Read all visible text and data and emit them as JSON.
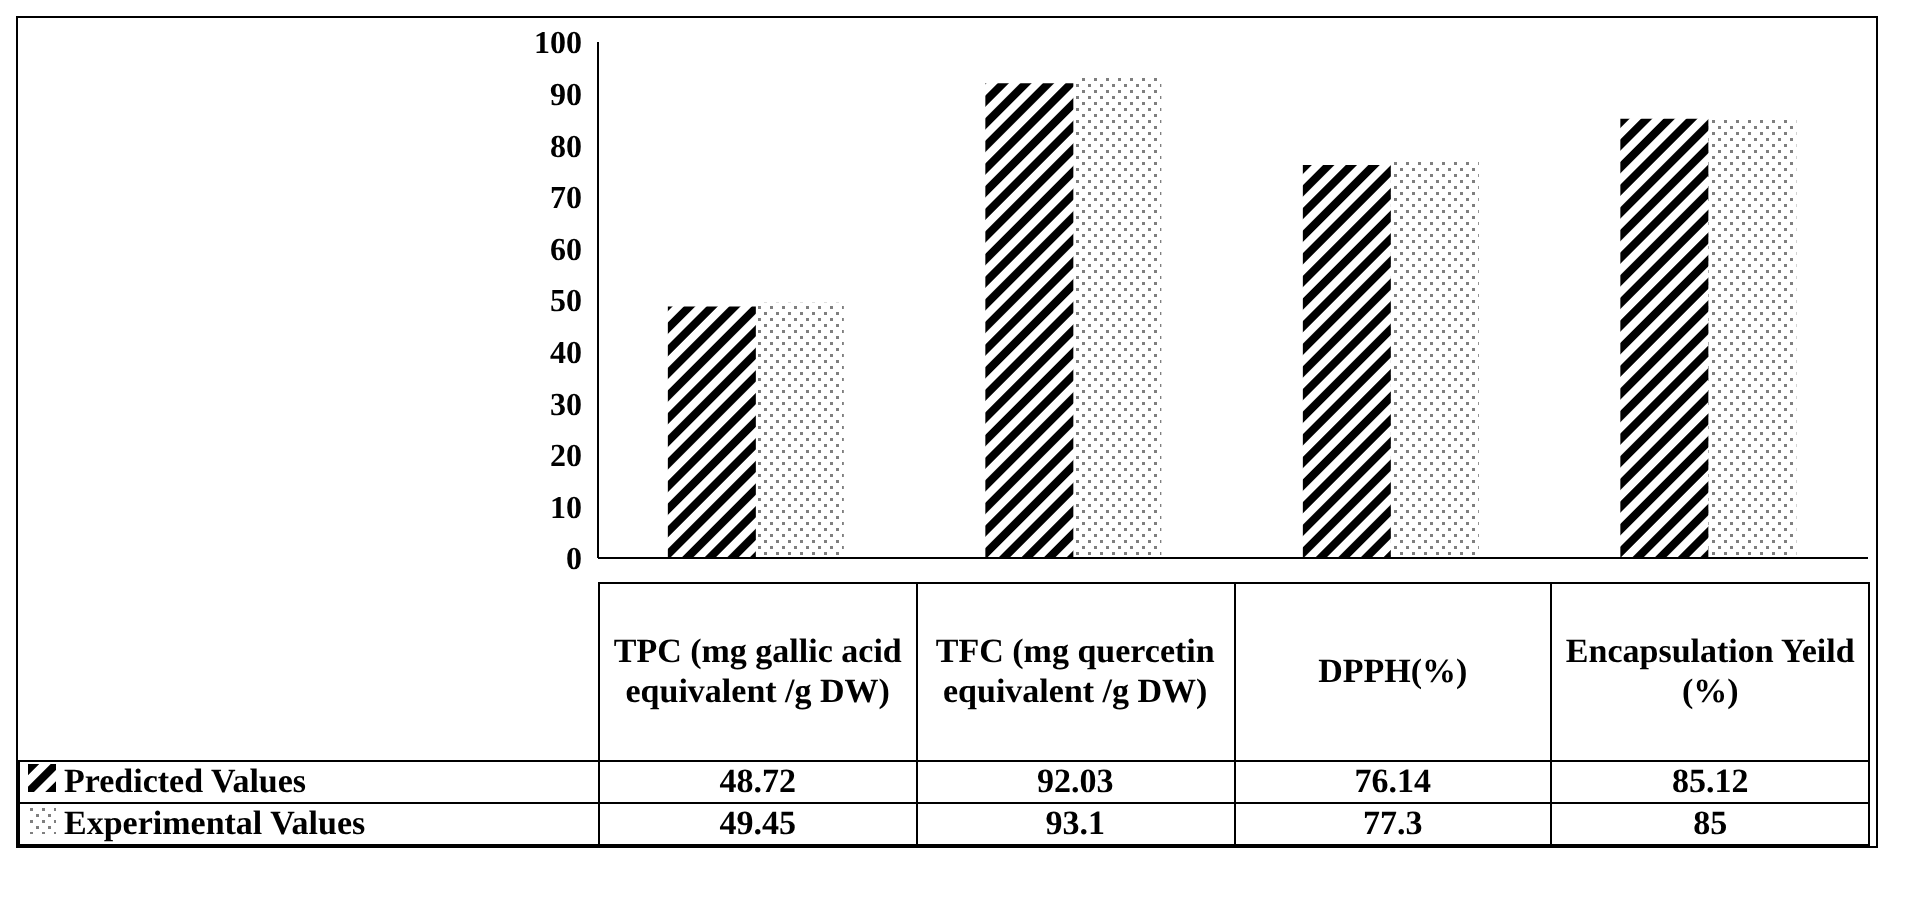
{
  "chart_data": {
    "type": "bar",
    "categories": [
      "TPC (mg gallic acid equivalent /g DW)",
      "TFC (mg quercetin equivalent /g DW)",
      "DPPH(%)",
      "Encapsulation Yeild (%)"
    ],
    "series": [
      {
        "name": "Predicted Values",
        "color": "#000000",
        "values": [
          48.72,
          92.03,
          76.14,
          85.12
        ]
      },
      {
        "name": "Experimental Values",
        "color": "#7f7f7f",
        "values": [
          49.45,
          93.1,
          77.3,
          85
        ]
      }
    ],
    "ylim": [
      0,
      100
    ],
    "yticks": [
      0,
      10,
      20,
      30,
      40,
      50,
      60,
      70,
      80,
      90,
      100
    ],
    "grid": false,
    "data_labels": true,
    "legend": "bottom left"
  }
}
